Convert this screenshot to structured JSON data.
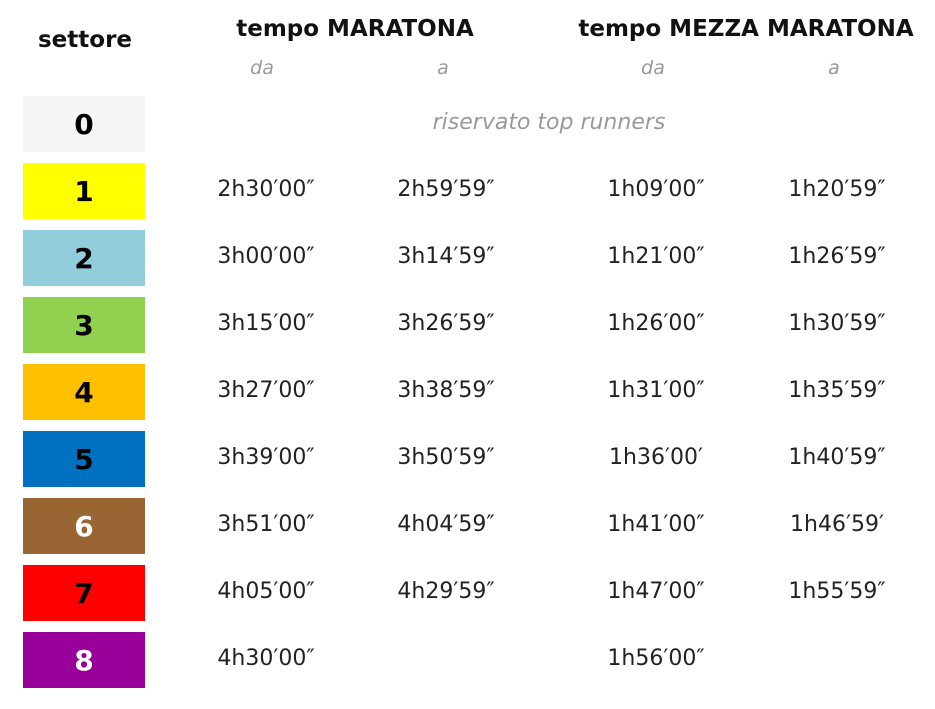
{
  "header": {
    "sector": "settore",
    "marathon": {
      "title": "tempo MARATONA",
      "from": "da",
      "to": "a"
    },
    "half_marathon": {
      "title": "tempo MEZZA MARATONA",
      "from": "da",
      "to": "a"
    }
  },
  "rows": [
    {
      "sector": "0",
      "color": "#f5f5f5",
      "text_color": "#000000",
      "note": "riservato top runners"
    },
    {
      "sector": "1",
      "color": "#ffff00",
      "text_color": "#000000",
      "marathon_from": "2h30′00″",
      "marathon_to": "2h59′59″",
      "half_from": "1h09′00″",
      "half_to": "1h20′59″"
    },
    {
      "sector": "2",
      "color": "#92cddc",
      "text_color": "#000000",
      "marathon_from": "3h00′00″",
      "marathon_to": "3h14′59″",
      "half_from": "1h21′00″",
      "half_to": "1h26′59″"
    },
    {
      "sector": "3",
      "color": "#92d050",
      "text_color": "#000000",
      "marathon_from": "3h15′00″",
      "marathon_to": "3h26′59″",
      "half_from": "1h26′00″",
      "half_to": "1h30′59″"
    },
    {
      "sector": "4",
      "color": "#ffc000",
      "text_color": "#000000",
      "marathon_from": "3h27′00″",
      "marathon_to": "3h38′59″",
      "half_from": "1h31′00″",
      "half_to": "1h35′59″"
    },
    {
      "sector": "5",
      "color": "#0070c0",
      "text_color": "#000000",
      "marathon_from": "3h39′00″",
      "marathon_to": "3h50′59″",
      "half_from": "1h36′00′",
      "half_to": "1h40′59″"
    },
    {
      "sector": "6",
      "color": "#996633",
      "text_color": "#ffffff",
      "marathon_from": "3h51′00″",
      "marathon_to": "4h04′59″",
      "half_from": "1h41′00″",
      "half_to": "1h46′59′"
    },
    {
      "sector": "7",
      "color": "#ff0000",
      "text_color": "#000000",
      "marathon_from": "4h05′00″",
      "marathon_to": "4h29′59″",
      "half_from": "1h47′00″",
      "half_to": "1h55′59″"
    },
    {
      "sector": "8",
      "color": "#990099",
      "text_color": "#ffffff",
      "marathon_from": "4h30′00″",
      "half_from": "1h56′00″"
    }
  ]
}
